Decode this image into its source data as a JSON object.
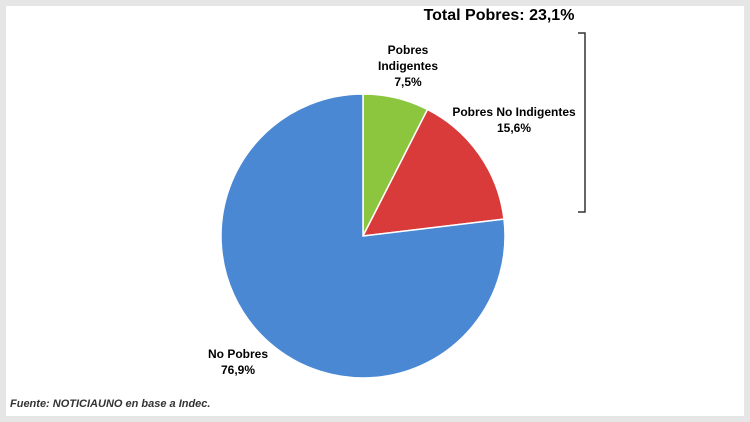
{
  "chart_data": {
    "type": "pie",
    "annotation": "Total Pobres: 23,1%",
    "source": "Fuente: NOTICIAUNO en base a Indec.",
    "categories": [
      "Pobres Indigentes",
      "Pobres No Indigentes",
      "No Pobres"
    ],
    "values": [
      7.5,
      15.6,
      76.9
    ],
    "value_labels": [
      "7,5%",
      "15,6%",
      "76,9%"
    ],
    "colors": [
      "#8cc63f",
      "#d93a3a",
      "#4a88d4"
    ]
  }
}
